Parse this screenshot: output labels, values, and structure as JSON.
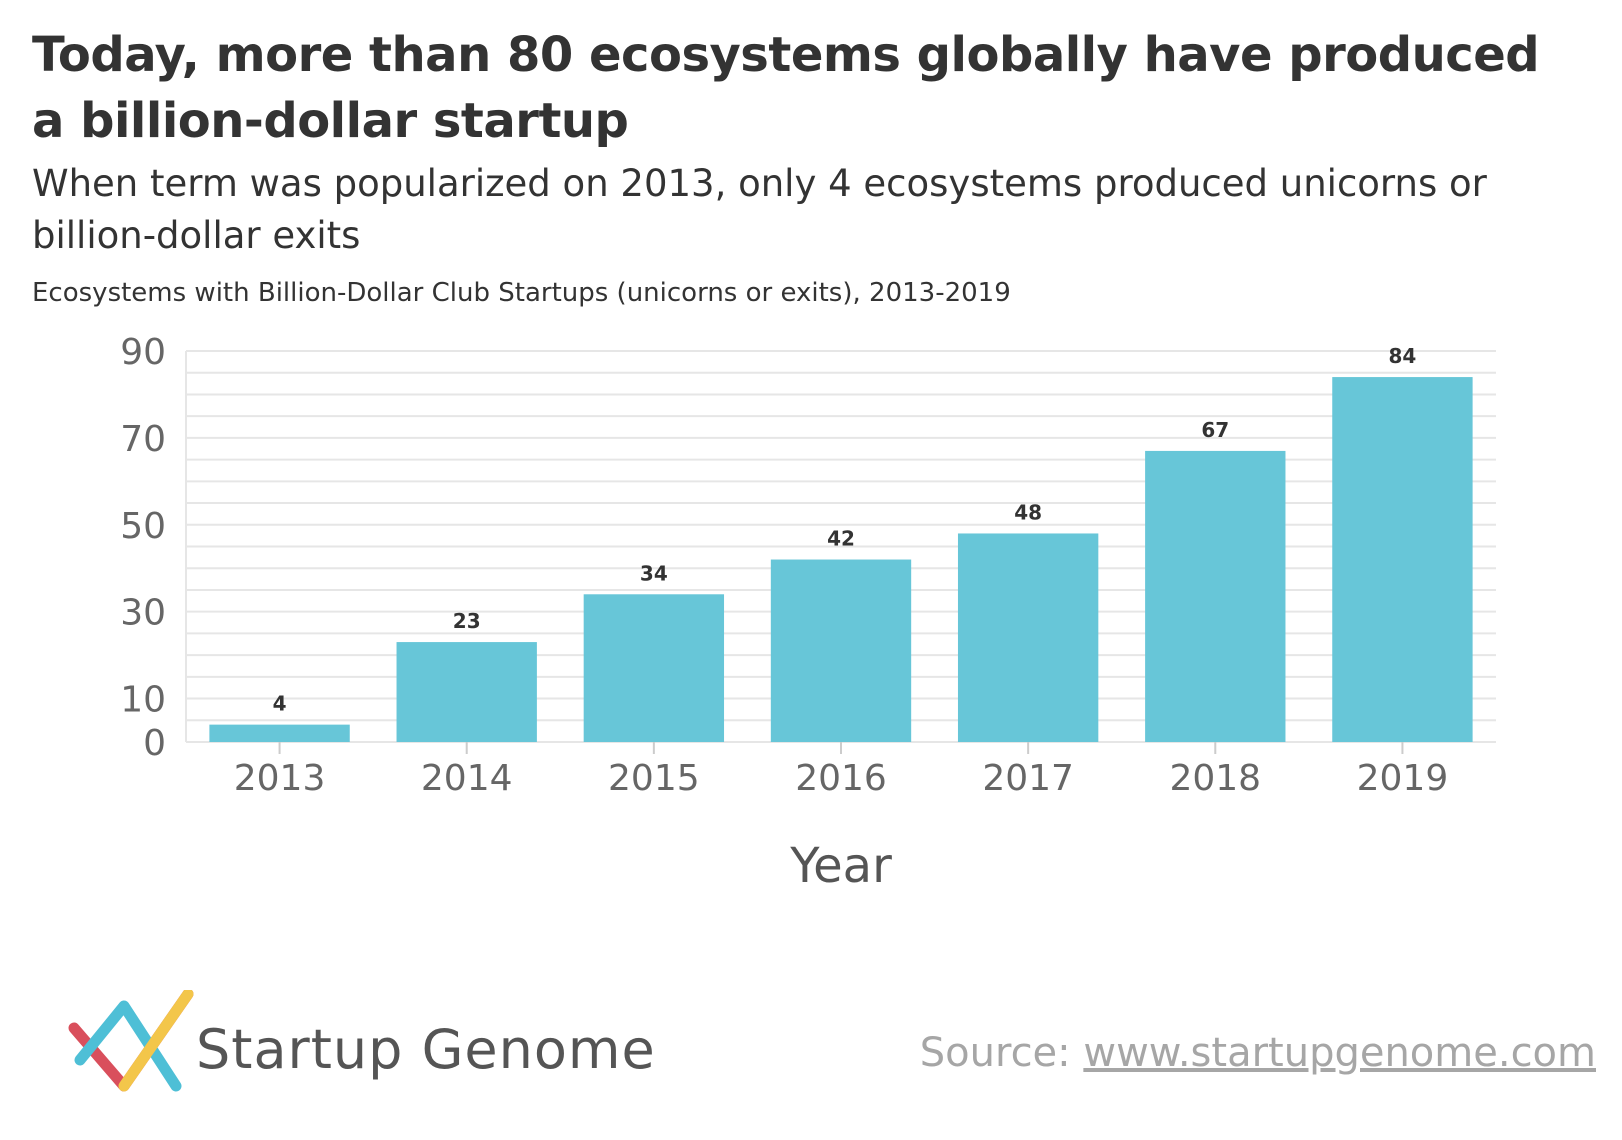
{
  "header": {
    "title": "Today, more than 80 ecosystems globally have produced a billion-dollar startup",
    "subtitle": "When term was popularized on 2013, only 4 ecosystems produced unicorns or billion-dollar exits",
    "description": "Ecosystems with Billion-Dollar Club Startups (unicorns or exits), 2013-2019"
  },
  "chart_data": {
    "type": "bar",
    "categories": [
      "2013",
      "2014",
      "2015",
      "2016",
      "2017",
      "2018",
      "2019"
    ],
    "values": [
      4,
      23,
      34,
      42,
      48,
      67,
      84
    ],
    "title": "Ecosystems with Billion-Dollar Club Startups (unicorns or exits), 2013-2019",
    "xlabel": "Year",
    "ylabel": "",
    "ylim": [
      0,
      90
    ],
    "yticks": [
      0,
      10,
      30,
      50,
      70,
      90
    ],
    "grid": true,
    "bar_color": "#67c6d8",
    "data_labels": true
  },
  "footer": {
    "logo_text": "Startup Genome",
    "source_prefix": "Source: ",
    "source_link": "www.startupgenome.com"
  },
  "colors": {
    "bar": "#67c6d8",
    "grid": "#e6e6e6",
    "tick_text": "#666666",
    "logo_red": "#d94f5c",
    "logo_teal": "#4ebfd6",
    "logo_yellow": "#f3c64a"
  }
}
